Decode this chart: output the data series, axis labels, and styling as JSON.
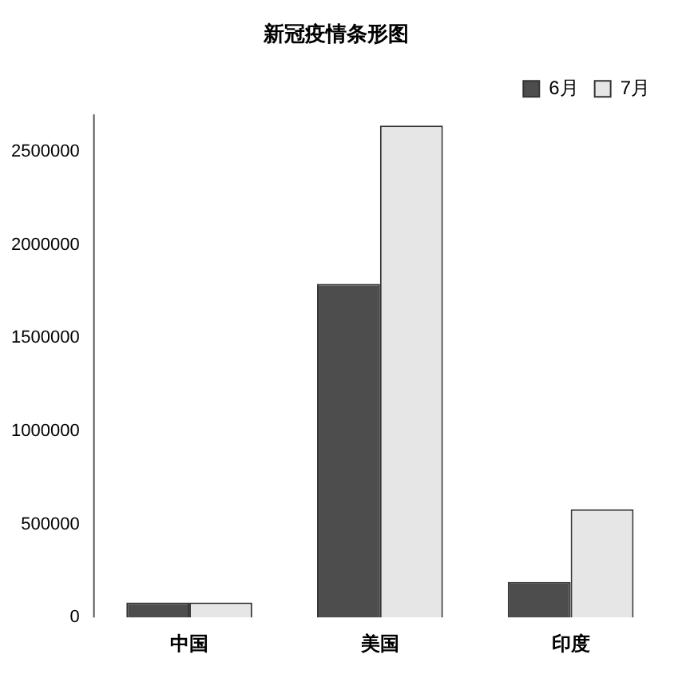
{
  "chart_data": {
    "type": "bar",
    "title": "新冠疫情条形图",
    "categories": [
      "中国",
      "美国",
      "印度"
    ],
    "series": [
      {
        "name": "6月",
        "color": "#4d4d4d",
        "values": [
          80000,
          1790000,
          190000
        ]
      },
      {
        "name": "7月",
        "color": "#e6e6e6",
        "values": [
          80000,
          2640000,
          580000
        ]
      }
    ],
    "ylim": [
      0,
      2700000
    ],
    "yticks": [
      0,
      500000,
      1000000,
      1500000,
      2000000,
      2500000
    ],
    "grid": false,
    "legend": "top right"
  }
}
